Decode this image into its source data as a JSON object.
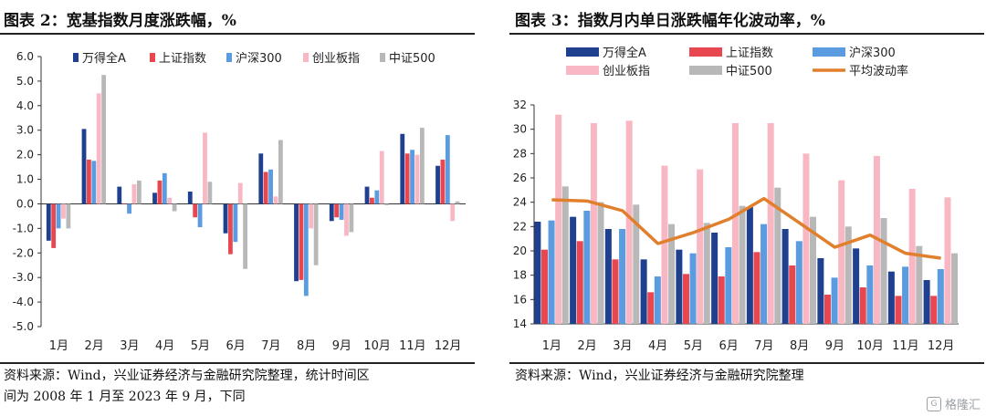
{
  "figures": [
    {
      "title": "图表 2：宽基指数月度涨跌幅，%",
      "note_lines": [
        "资料来源：Wind，兴业证券经济与金融研究院整理，统计时间区",
        "间为 2008 年 1 月至 2023 年 9 月，下同"
      ]
    },
    {
      "title": "图表 3：指数月内单日涨跌幅年化波动率，%",
      "note_lines": [
        "资料来源：Wind，兴业证券经济与金融研究院整理"
      ]
    }
  ],
  "watermark": {
    "text": "格隆汇",
    "icon": "glh-logo-icon"
  },
  "chart_data": [
    {
      "type": "bar",
      "title": "图表 2：宽基指数月度涨跌幅，%",
      "categories": [
        "1月",
        "2月",
        "3月",
        "4月",
        "5月",
        "6月",
        "7月",
        "8月",
        "9月",
        "10月",
        "11月",
        "12月"
      ],
      "ylim": [
        -5.0,
        6.0
      ],
      "yticks": [
        "6.0",
        "5.0",
        "4.0",
        "3.0",
        "2.0",
        "1.0",
        "0.0",
        "-1.0",
        "-2.0",
        "-3.0",
        "-4.0",
        "-5.0"
      ],
      "grid": false,
      "legend_position": "top",
      "series": [
        {
          "name": "万得全A",
          "color": "#1f3f8f",
          "values": [
            -1.5,
            3.05,
            0.7,
            0.45,
            0.5,
            -1.2,
            2.05,
            -3.15,
            -0.7,
            0.7,
            2.85,
            1.55
          ]
        },
        {
          "name": "上证指数",
          "color": "#e8474f",
          "values": [
            -1.8,
            1.8,
            0.0,
            0.95,
            -0.55,
            -2.05,
            1.3,
            -3.1,
            -0.55,
            0.25,
            2.05,
            1.8
          ]
        },
        {
          "name": "沪深300",
          "color": "#5b9be0",
          "values": [
            -1.0,
            1.75,
            -0.4,
            1.25,
            -0.95,
            -1.55,
            1.4,
            -3.75,
            -0.65,
            0.55,
            2.2,
            2.8
          ]
        },
        {
          "name": "创业板指",
          "color": "#f8b7c2",
          "values": [
            -0.6,
            4.5,
            0.8,
            0.25,
            2.9,
            0.85,
            0.3,
            -1.0,
            -1.3,
            2.15,
            2.0,
            -0.7
          ]
        },
        {
          "name": "中证500",
          "color": "#b8b8b8",
          "values": [
            -1.0,
            5.25,
            0.95,
            -0.3,
            0.9,
            -2.65,
            2.6,
            -2.5,
            -1.15,
            -0.05,
            3.1,
            0.1
          ]
        }
      ]
    },
    {
      "type": "bar",
      "title": "图表 3：指数月内单日涨跌幅年化波动率，%",
      "categories": [
        "1月",
        "2月",
        "3月",
        "4月",
        "5月",
        "6月",
        "7月",
        "8月",
        "9月",
        "10月",
        "11月",
        "12月"
      ],
      "ylim": [
        14,
        32
      ],
      "yticks": [
        "32",
        "30",
        "28",
        "26",
        "24",
        "22",
        "20",
        "18",
        "16",
        "14"
      ],
      "grid": false,
      "legend_position": "top",
      "series": [
        {
          "name": "万得全A",
          "color": "#1f3f8f",
          "values": [
            22.4,
            22.8,
            21.8,
            19.3,
            20.1,
            21.5,
            23.6,
            21.8,
            19.4,
            20.2,
            18.3,
            17.6
          ]
        },
        {
          "name": "上证指数",
          "color": "#e8474f",
          "values": [
            20.1,
            20.8,
            19.3,
            16.6,
            18.1,
            17.9,
            19.9,
            18.8,
            16.4,
            17.0,
            16.3,
            16.3
          ]
        },
        {
          "name": "沪深300",
          "color": "#5b9be0",
          "values": [
            22.5,
            23.3,
            21.8,
            17.9,
            19.8,
            20.3,
            22.2,
            20.8,
            17.8,
            18.8,
            18.7,
            18.5
          ]
        },
        {
          "name": "创业板指",
          "color": "#f8b7c2",
          "values": [
            31.2,
            30.5,
            30.7,
            27.0,
            26.7,
            30.5,
            30.5,
            28.0,
            25.8,
            27.8,
            25.1,
            24.4
          ]
        },
        {
          "name": "中证500",
          "color": "#b8b8b8",
          "values": [
            25.3,
            24.0,
            23.8,
            22.2,
            22.3,
            23.7,
            25.2,
            22.8,
            22.0,
            22.7,
            20.4,
            19.8
          ]
        },
        {
          "name": "平均波动率",
          "type": "line",
          "color": "#e07f2c",
          "values": [
            24.2,
            24.1,
            23.3,
            20.6,
            21.5,
            22.6,
            24.3,
            22.3,
            20.3,
            21.3,
            19.8,
            19.4
          ]
        }
      ]
    }
  ]
}
